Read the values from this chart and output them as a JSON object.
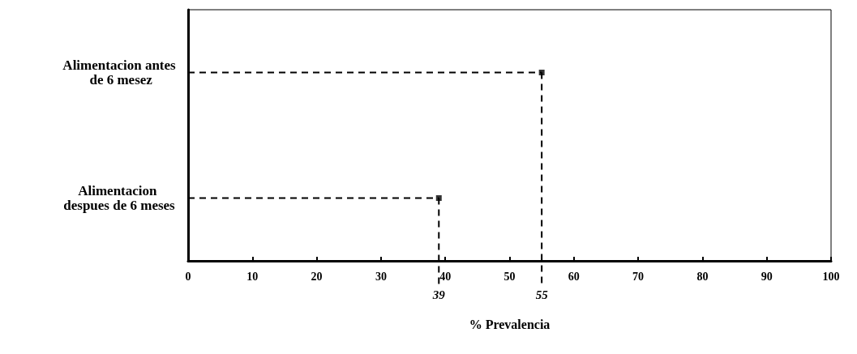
{
  "chart_data": {
    "type": "lollipop",
    "orientation": "horizontal",
    "xlabel": "% Prevalencia",
    "categories": [
      "Alimentacion antes de 6 mesez",
      "Alimentacion despues de 6 meses"
    ],
    "values": [
      55,
      39
    ],
    "color": "#000000",
    "marker": "square",
    "line_style": "dashed",
    "xlim": [
      0,
      100
    ],
    "xticks": [
      0,
      10,
      20,
      30,
      40,
      50,
      60,
      70,
      80,
      90,
      100
    ],
    "grid": false,
    "legend": false,
    "ref_lines": [
      {
        "axis": "x",
        "value": 39,
        "label": "39",
        "line_style": "dashed"
      },
      {
        "axis": "x",
        "value": 55,
        "label": "55",
        "line_style": "dashed"
      }
    ]
  }
}
